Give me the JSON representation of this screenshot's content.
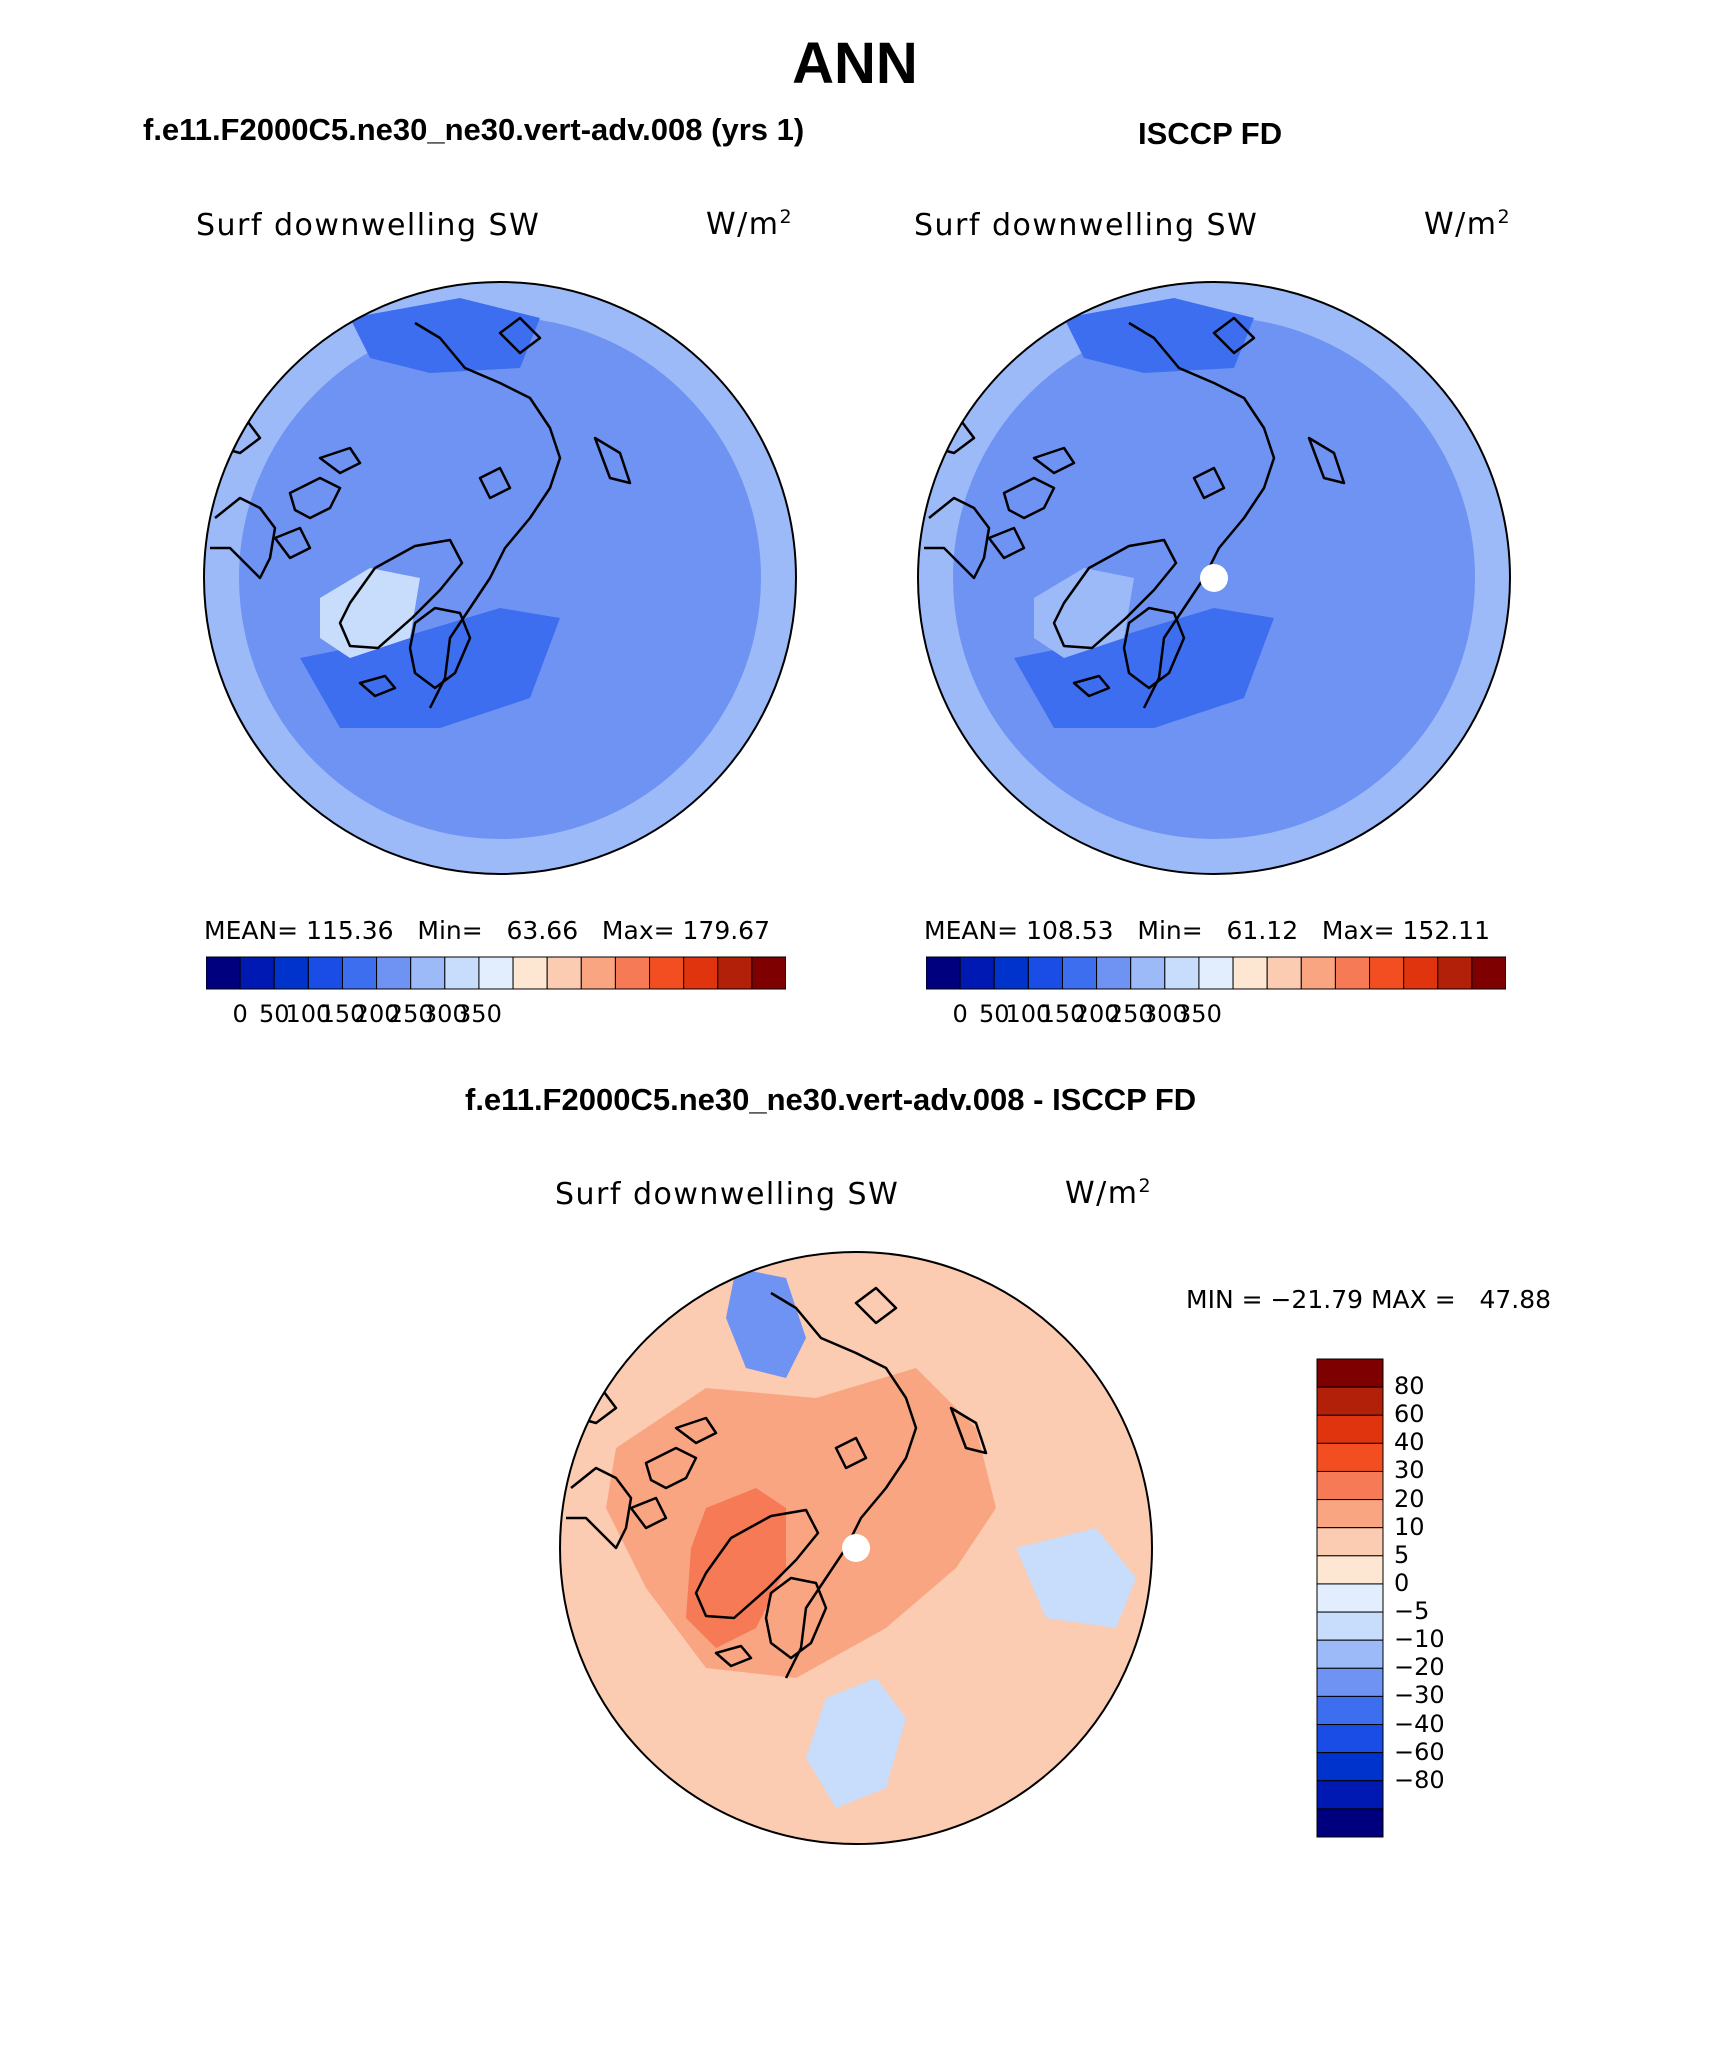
{
  "title": "ANN",
  "panels": {
    "model": {
      "case_label": "f.e11.F2000C5.ne30_ne30.vert-adv.008 (yrs 1)",
      "variable": "Surf downwelling SW",
      "units_base": "W/m",
      "units_sup": "2",
      "stats": "MEAN= 115.36   Min=   63.66   Max= 179.67",
      "stats_values": {
        "mean": 115.36,
        "min": 63.66,
        "max": 179.67
      }
    },
    "obs": {
      "case_label": "ISCCP FD",
      "variable": "Surf downwelling SW",
      "units_base": "W/m",
      "units_sup": "2",
      "stats": "MEAN= 108.53   Min=   61.12   Max= 152.11",
      "stats_values": {
        "mean": 108.53,
        "min": 61.12,
        "max": 152.11
      }
    },
    "diff": {
      "case_label": "f.e11.F2000C5.ne30_ne30.vert-adv.008 - ISCCP FD",
      "variable": "Surf downwelling SW",
      "units_base": "W/m",
      "units_sup": "2",
      "minmax": "MIN = −21.79 MAX =   47.88",
      "minmax_values": {
        "min": -21.79,
        "max": 47.88
      }
    }
  },
  "abs_colorbar": {
    "colors": [
      "#00007f",
      "#0019b2",
      "#0033cc",
      "#1a4ce6",
      "#3d6ef0",
      "#6e93f2",
      "#9dbaf8",
      "#c8dcfb",
      "#e2eefd",
      "#fde6d2",
      "#fbcbb2",
      "#f9a582",
      "#f57a55",
      "#f24e22",
      "#e0340f",
      "#b3200a",
      "#7f0000"
    ],
    "tick_labels": [
      "0",
      "50",
      "100",
      "150",
      "200",
      "250",
      "300",
      "350"
    ]
  },
  "diff_colorbar": {
    "colors": [
      "#7f0000",
      "#b3200a",
      "#e0340f",
      "#f24e22",
      "#f57a55",
      "#f9a582",
      "#fbcbb2",
      "#fde6d2",
      "#e2eefd",
      "#c8dcfb",
      "#9dbaf8",
      "#6e93f2",
      "#3d6ef0",
      "#1a4ce6",
      "#0033cc",
      "#0019b2",
      "#00007f"
    ],
    "tick_labels": [
      "80",
      "60",
      "40",
      "30",
      "20",
      "10",
      "5",
      "0",
      "−5",
      "−10",
      "−20",
      "−30",
      "−40",
      "−60",
      "−80"
    ]
  },
  "map_palette": {
    "model_base": "#9dbaf8",
    "model_mid": "#6e93f2",
    "model_dark": "#3d6ef0",
    "model_light": "#c8dcfb",
    "obs_base": "#6e93f2",
    "obs_dark": "#3d6ef0",
    "obs_light": "#9dbaf8",
    "diff_base": "#fbcbb2",
    "diff_warm": "#f9a582",
    "diff_hot": "#f57a55",
    "diff_cool": "#c8dcfb",
    "diff_blue": "#6e93f2",
    "coast": "#000000",
    "pole_mask": "#ffffff"
  }
}
